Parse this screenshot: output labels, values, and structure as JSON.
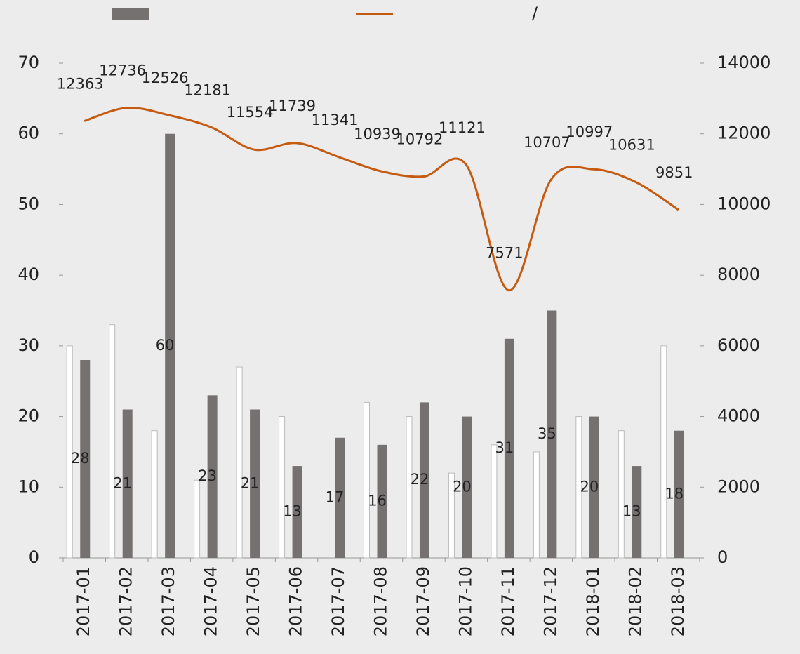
{
  "chart_data": {
    "type": "bar-line",
    "categories": [
      "2017-01",
      "2017-02",
      "2017-03",
      "2017-04",
      "2017-05",
      "2017-06",
      "2017-07",
      "2017-08",
      "2017-09",
      "2017-10",
      "2017-11",
      "2017-12",
      "2018-01",
      "2018-02",
      "2018-03"
    ],
    "series": [
      {
        "type": "bar",
        "color": "#ffffff",
        "values": [
          30,
          33,
          18,
          11,
          27,
          20,
          0,
          22,
          20,
          12,
          16,
          15,
          20,
          18,
          30
        ]
      },
      {
        "type": "bar",
        "color": "#767171",
        "values": [
          28,
          21,
          60,
          23,
          21,
          13,
          17,
          16,
          22,
          20,
          31,
          35,
          20,
          13,
          18
        ]
      },
      {
        "type": "line",
        "name": "/",
        "color": "#c55a11",
        "axis": "y2",
        "values": [
          12363,
          12736,
          12526,
          12181,
          11554,
          11739,
          11341,
          10939,
          10792,
          11121,
          7571,
          10707,
          10997,
          10631,
          9851
        ]
      }
    ],
    "ylim": [
      0,
      70
    ],
    "yticks": [
      0,
      10,
      20,
      30,
      40,
      50,
      60,
      70
    ],
    "y2lim": [
      0,
      14000
    ],
    "y2ticks": [
      0,
      2000,
      4000,
      6000,
      8000,
      10000,
      12000,
      14000
    ]
  }
}
